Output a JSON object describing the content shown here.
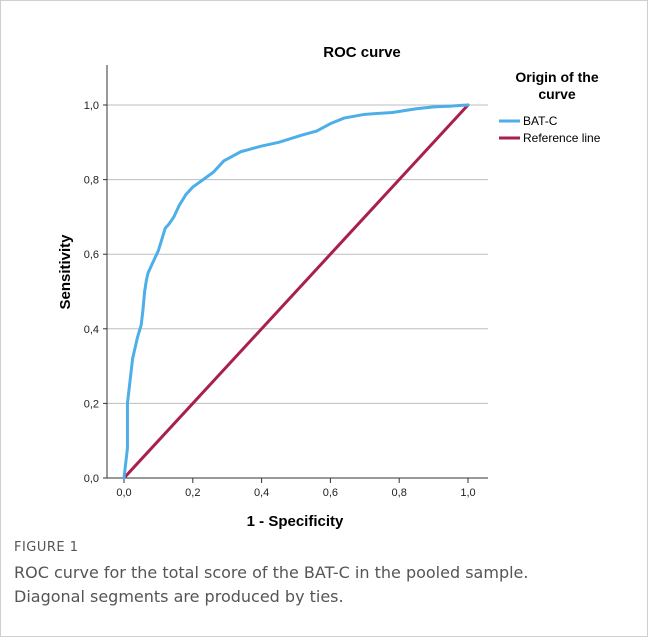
{
  "chart_data": {
    "type": "line",
    "title": "ROC curve",
    "xlabel": "1 - Specificity",
    "ylabel": "Sensitivity",
    "xlim": [
      0,
      1
    ],
    "ylim": [
      0,
      1
    ],
    "x_ticks": [
      "0,0",
      "0,2",
      "0,4",
      "0,6",
      "0,8",
      "1,0"
    ],
    "y_ticks": [
      "0,0",
      "0,2",
      "0,4",
      "0,6",
      "0,8",
      "1,0"
    ],
    "grid": "horizontal",
    "legend": {
      "title": "Origin of the curve",
      "placement": "right"
    },
    "series": [
      {
        "name": "BAT-C",
        "color": "#4daee8",
        "x": [
          0.0,
          0.005,
          0.01,
          0.01,
          0.015,
          0.02,
          0.025,
          0.03,
          0.035,
          0.04,
          0.05,
          0.055,
          0.06,
          0.065,
          0.07,
          0.08,
          0.09,
          0.1,
          0.11,
          0.12,
          0.13,
          0.145,
          0.16,
          0.18,
          0.2,
          0.23,
          0.26,
          0.29,
          0.31,
          0.34,
          0.36,
          0.4,
          0.45,
          0.52,
          0.56,
          0.6,
          0.64,
          0.7,
          0.78,
          0.85,
          0.9,
          0.95,
          0.98,
          1.0
        ],
        "y": [
          0.0,
          0.04,
          0.08,
          0.2,
          0.24,
          0.28,
          0.32,
          0.34,
          0.36,
          0.38,
          0.41,
          0.45,
          0.5,
          0.53,
          0.55,
          0.57,
          0.59,
          0.61,
          0.64,
          0.67,
          0.68,
          0.7,
          0.73,
          0.76,
          0.78,
          0.8,
          0.82,
          0.85,
          0.86,
          0.875,
          0.88,
          0.89,
          0.9,
          0.92,
          0.93,
          0.95,
          0.965,
          0.975,
          0.98,
          0.99,
          0.995,
          0.997,
          0.999,
          1.0
        ]
      },
      {
        "name": "Reference line",
        "color": "#a8204e",
        "x": [
          0,
          1
        ],
        "y": [
          0,
          1
        ]
      }
    ]
  },
  "caption": {
    "label": "FIGURE 1",
    "text_line1": "ROC curve for the total score of the BAT-C in the pooled sample.",
    "text_line2": "Diagonal segments are produced by ties."
  }
}
